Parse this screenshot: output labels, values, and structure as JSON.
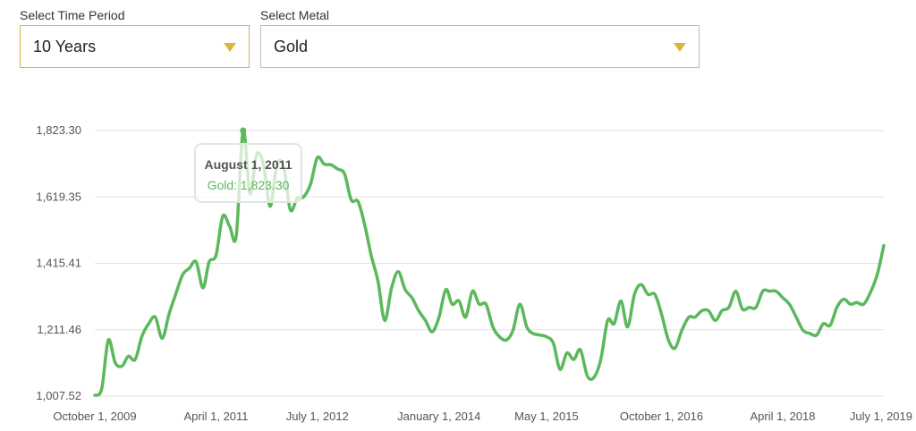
{
  "controls": {
    "period_label": "Select Time Period",
    "period_value": "10 Years",
    "metal_label": "Select Metal",
    "metal_value": "Gold",
    "accent_color": "#d9b53a"
  },
  "tooltip": {
    "date": "August 1, 2011",
    "series": "Gold",
    "value": "1,823.30"
  },
  "chart_data": {
    "type": "line",
    "title": "",
    "xlabel": "",
    "ylabel": "",
    "ylim": [
      1007.52,
      1823.3
    ],
    "yticks": [
      "1,007.52",
      "1,211.46",
      "1,415.41",
      "1,619.35",
      "1,823.30"
    ],
    "xticks": [
      "October 1, 2009",
      "April 1, 2011",
      "July 1, 2012",
      "January 1, 2014",
      "May 1, 2015",
      "October 1, 2016",
      "April 1, 2018",
      "July 1, 2019"
    ],
    "xlim": [
      "2009-10-01",
      "2019-07-01"
    ],
    "grid": true,
    "line_color": "#5cb85c",
    "series": [
      {
        "name": "Gold",
        "points": [
          [
            "2009-10-01",
            1010
          ],
          [
            "2009-11-01",
            1030
          ],
          [
            "2009-12-01",
            1180
          ],
          [
            "2010-01-01",
            1110
          ],
          [
            "2010-02-01",
            1100
          ],
          [
            "2010-03-01",
            1130
          ],
          [
            "2010-04-01",
            1120
          ],
          [
            "2010-05-01",
            1190
          ],
          [
            "2010-06-01",
            1230
          ],
          [
            "2010-07-01",
            1250
          ],
          [
            "2010-08-01",
            1185
          ],
          [
            "2010-09-01",
            1260
          ],
          [
            "2010-10-01",
            1320
          ],
          [
            "2010-11-01",
            1380
          ],
          [
            "2010-12-01",
            1400
          ],
          [
            "2011-01-01",
            1420
          ],
          [
            "2011-02-01",
            1340
          ],
          [
            "2011-03-01",
            1420
          ],
          [
            "2011-04-01",
            1440
          ],
          [
            "2011-05-01",
            1560
          ],
          [
            "2011-06-01",
            1530
          ],
          [
            "2011-07-01",
            1500
          ],
          [
            "2011-08-01",
            1823.3
          ],
          [
            "2011-09-01",
            1630
          ],
          [
            "2011-10-01",
            1750
          ],
          [
            "2011-11-01",
            1720
          ],
          [
            "2011-12-01",
            1590
          ],
          [
            "2012-01-01",
            1720
          ],
          [
            "2012-02-01",
            1710
          ],
          [
            "2012-03-01",
            1580
          ],
          [
            "2012-04-01",
            1615
          ],
          [
            "2012-05-01",
            1620
          ],
          [
            "2012-06-01",
            1660
          ],
          [
            "2012-07-01",
            1740
          ],
          [
            "2012-08-01",
            1720
          ],
          [
            "2012-09-01",
            1718
          ],
          [
            "2012-10-01",
            1705
          ],
          [
            "2012-11-01",
            1690
          ],
          [
            "2012-12-01",
            1610
          ],
          [
            "2013-01-01",
            1605
          ],
          [
            "2013-02-01",
            1530
          ],
          [
            "2013-03-01",
            1440
          ],
          [
            "2013-04-01",
            1360
          ],
          [
            "2013-05-01",
            1240
          ],
          [
            "2013-06-01",
            1340
          ],
          [
            "2013-07-01",
            1390
          ],
          [
            "2013-08-01",
            1335
          ],
          [
            "2013-09-01",
            1310
          ],
          [
            "2013-10-01",
            1270
          ],
          [
            "2013-11-01",
            1240
          ],
          [
            "2013-12-01",
            1205
          ],
          [
            "2014-01-01",
            1250
          ],
          [
            "2014-02-01",
            1335
          ],
          [
            "2014-03-01",
            1290
          ],
          [
            "2014-04-01",
            1300
          ],
          [
            "2014-05-01",
            1250
          ],
          [
            "2014-06-01",
            1330
          ],
          [
            "2014-07-01",
            1290
          ],
          [
            "2014-08-01",
            1290
          ],
          [
            "2014-09-01",
            1220
          ],
          [
            "2014-10-01",
            1190
          ],
          [
            "2014-11-01",
            1180
          ],
          [
            "2014-12-01",
            1210
          ],
          [
            "2015-01-01",
            1290
          ],
          [
            "2015-02-01",
            1220
          ],
          [
            "2015-03-01",
            1200
          ],
          [
            "2015-04-01",
            1195
          ],
          [
            "2015-05-01",
            1190
          ],
          [
            "2015-06-01",
            1170
          ],
          [
            "2015-07-01",
            1090
          ],
          [
            "2015-08-01",
            1140
          ],
          [
            "2015-09-01",
            1120
          ],
          [
            "2015-10-01",
            1150
          ],
          [
            "2015-11-01",
            1070
          ],
          [
            "2015-12-01",
            1065
          ],
          [
            "2016-01-01",
            1120
          ],
          [
            "2016-02-01",
            1240
          ],
          [
            "2016-03-01",
            1230
          ],
          [
            "2016-04-01",
            1300
          ],
          [
            "2016-05-01",
            1220
          ],
          [
            "2016-06-01",
            1320
          ],
          [
            "2016-07-01",
            1350
          ],
          [
            "2016-08-01",
            1320
          ],
          [
            "2016-09-01",
            1320
          ],
          [
            "2016-10-01",
            1260
          ],
          [
            "2016-11-01",
            1180
          ],
          [
            "2016-12-01",
            1155
          ],
          [
            "2017-01-01",
            1210
          ],
          [
            "2017-02-01",
            1250
          ],
          [
            "2017-03-01",
            1250
          ],
          [
            "2017-04-01",
            1270
          ],
          [
            "2017-05-01",
            1270
          ],
          [
            "2017-06-01",
            1240
          ],
          [
            "2017-07-01",
            1270
          ],
          [
            "2017-08-01",
            1280
          ],
          [
            "2017-09-01",
            1330
          ],
          [
            "2017-10-01",
            1275
          ],
          [
            "2017-11-01",
            1280
          ],
          [
            "2017-12-01",
            1280
          ],
          [
            "2018-01-01",
            1330
          ],
          [
            "2018-02-01",
            1330
          ],
          [
            "2018-03-01",
            1330
          ],
          [
            "2018-04-01",
            1310
          ],
          [
            "2018-05-01",
            1290
          ],
          [
            "2018-06-01",
            1250
          ],
          [
            "2018-07-01",
            1210
          ],
          [
            "2018-08-01",
            1200
          ],
          [
            "2018-09-01",
            1195
          ],
          [
            "2018-10-01",
            1230
          ],
          [
            "2018-11-01",
            1225
          ],
          [
            "2018-12-01",
            1280
          ],
          [
            "2019-01-01",
            1305
          ],
          [
            "2019-02-01",
            1290
          ],
          [
            "2019-03-01",
            1295
          ],
          [
            "2019-04-01",
            1290
          ],
          [
            "2019-05-01",
            1325
          ],
          [
            "2019-06-01",
            1380
          ],
          [
            "2019-07-01",
            1470
          ]
        ]
      }
    ]
  }
}
